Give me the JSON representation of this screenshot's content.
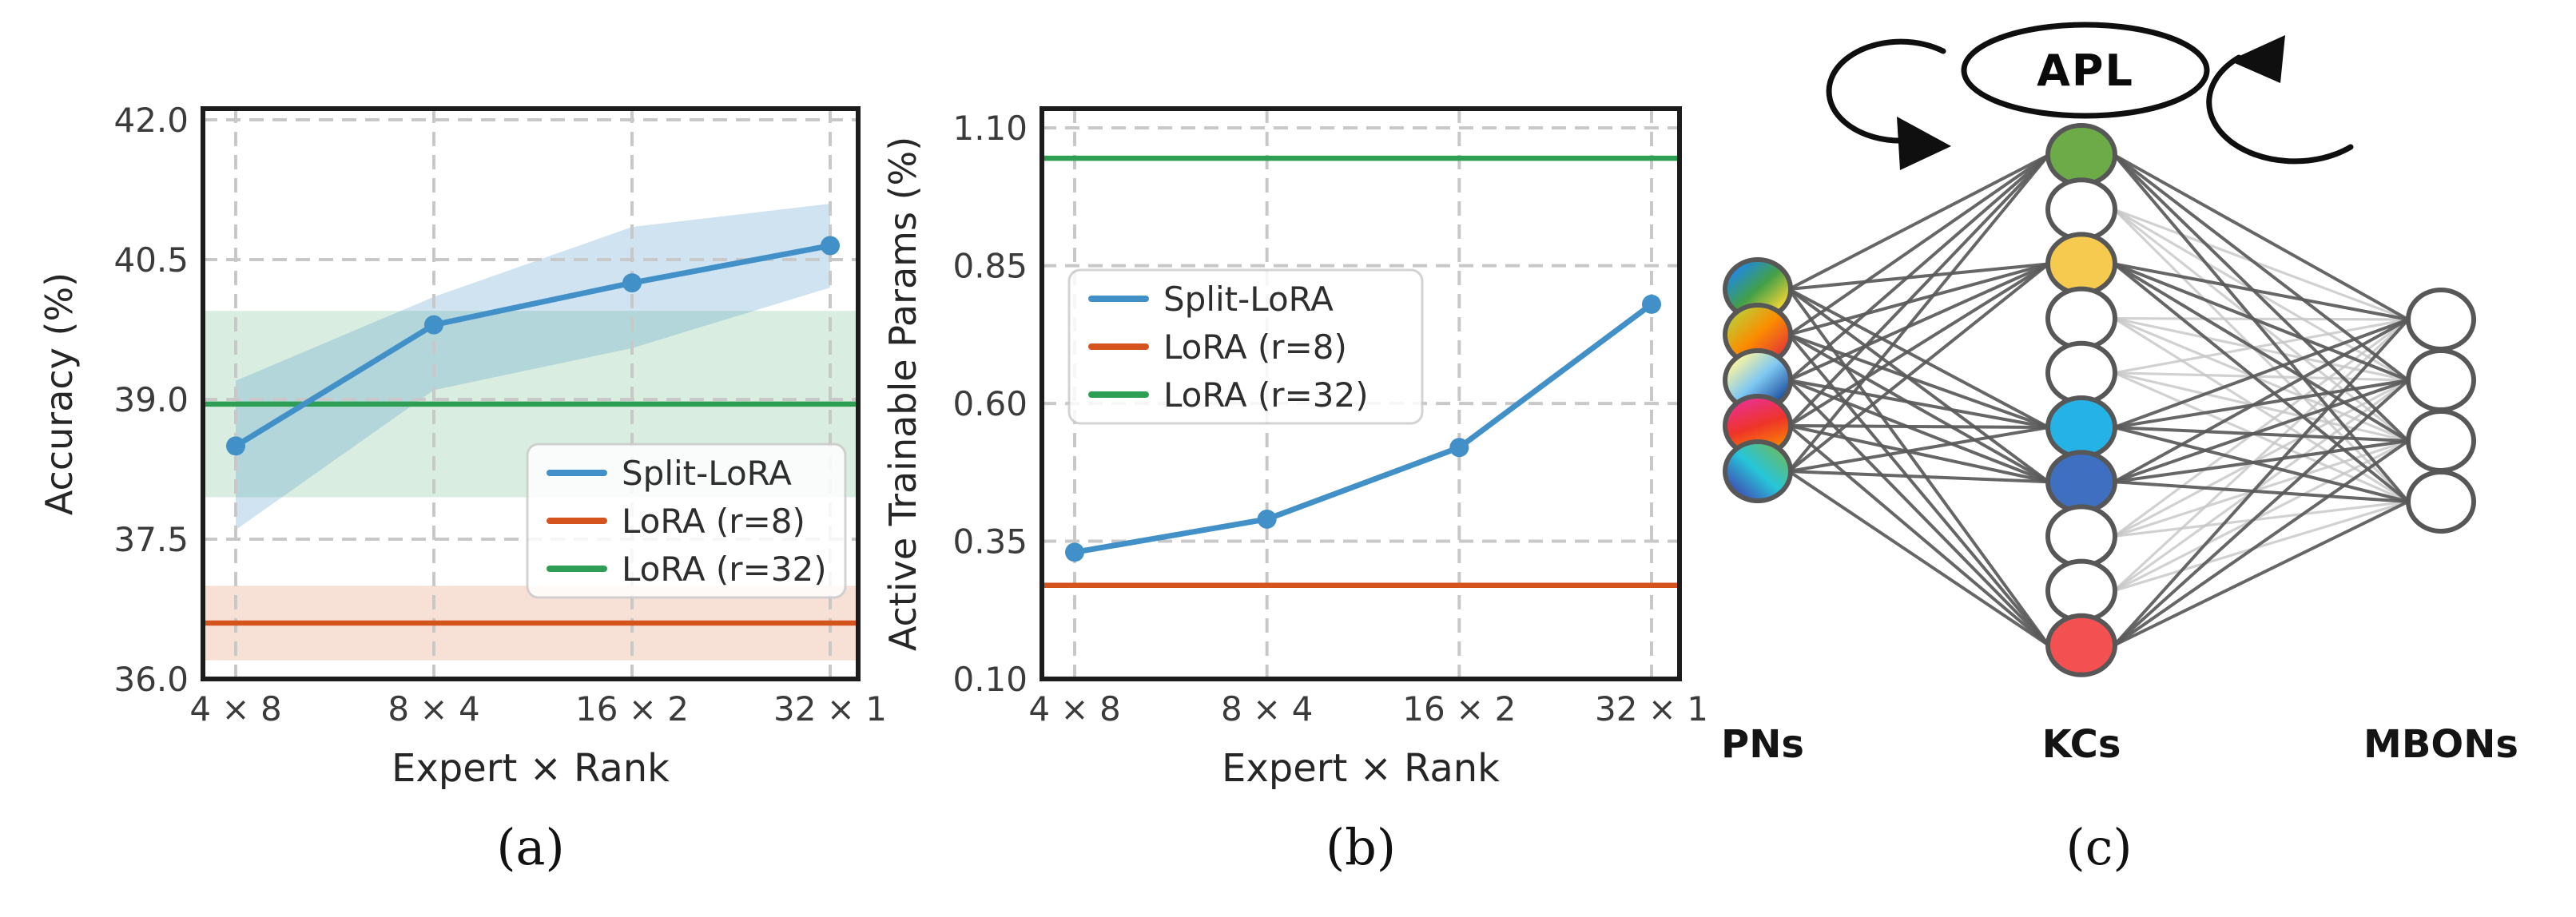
{
  "chart_data": [
    {
      "id": "a",
      "type": "line",
      "caption": "(a)",
      "xlabel": "Expert × Rank",
      "ylabel": "Accuracy (%)",
      "categories": [
        "4 × 8",
        "8 × 4",
        "16 × 2",
        "32 × 1"
      ],
      "ytick_labels": [
        "36.0",
        "37.5",
        "39.0",
        "40.5",
        "42.0"
      ],
      "yticks": [
        36.0,
        37.5,
        39.0,
        40.5,
        42.0
      ],
      "ylim": [
        36.0,
        42.12
      ],
      "grid": true,
      "legend_position": "center right",
      "series": [
        {
          "name": "Split-LoRA",
          "style": "line",
          "color": "#4290c8",
          "values": [
            38.5,
            39.8,
            40.25,
            40.65
          ],
          "band_low": [
            37.6,
            39.1,
            39.55,
            40.2
          ],
          "band_high": [
            39.2,
            40.1,
            40.85,
            41.1
          ]
        },
        {
          "name": "LoRA (r=8)",
          "style": "hline",
          "color": "#d5531c",
          "value": 36.6,
          "band": [
            36.2,
            37.0
          ]
        },
        {
          "name": "LoRA (r=32)",
          "style": "hline",
          "color": "#2e9e54",
          "value": 38.95,
          "band": [
            37.95,
            39.95
          ]
        }
      ]
    },
    {
      "id": "b",
      "type": "line",
      "caption": "(b)",
      "xlabel": "Expert × Rank",
      "ylabel": "Active Trainable Params (%)",
      "categories": [
        "4 × 8",
        "8 × 4",
        "16 × 2",
        "32 × 1"
      ],
      "ytick_labels": [
        "0.10",
        "0.35",
        "0.60",
        "0.85",
        "1.10"
      ],
      "yticks": [
        0.1,
        0.35,
        0.6,
        0.85,
        1.1
      ],
      "ylim": [
        0.1,
        1.135
      ],
      "grid": true,
      "legend_position": "upper left",
      "series": [
        {
          "name": "Split-LoRA",
          "style": "line",
          "color": "#4290c8",
          "values": [
            0.33,
            0.39,
            0.52,
            0.78
          ]
        },
        {
          "name": "LoRA (r=8)",
          "style": "hline",
          "color": "#d5531c",
          "value": 0.27
        },
        {
          "name": "LoRA (r=32)",
          "style": "hline",
          "color": "#2e9e54",
          "value": 1.045
        }
      ]
    }
  ],
  "diagram": {
    "caption": "(c)",
    "apl_label": "APL",
    "outline_color": "#575757",
    "edge_dark": "#5a5a5a",
    "edge_light": "#c6c6c6",
    "groups": [
      {
        "label": "PNs",
        "type": "gradient-nodes",
        "gradients": [
          {
            "angle": 45,
            "stops": [
              "#1e88e5",
              "#43a047",
              "#fdd835"
            ]
          },
          {
            "angle": 45,
            "stops": [
              "#c0ca33",
              "#fb8c00",
              "#e53935"
            ]
          },
          {
            "angle": 45,
            "stops": [
              "#fff59d",
              "#7ec8f2",
              "#1c4f9e"
            ]
          },
          {
            "angle": 250,
            "stops": [
              "#fb8c00",
              "#ef3429",
              "#e9318f"
            ]
          },
          {
            "angle": 315,
            "stops": [
              "#3f51b5",
              "#26c6da",
              "#66bb6a"
            ]
          }
        ]
      },
      {
        "label": "KCs",
        "type": "color-nodes",
        "colors": [
          "#6cab47",
          "#ffffff",
          "#f6c94f",
          "#ffffff",
          "#ffffff",
          "#25b2e6",
          "#3e6fc0",
          "#ffffff",
          "#ffffff",
          "#f25051"
        ]
      },
      {
        "label": "MBONs",
        "type": "color-nodes",
        "colors": [
          "#ffffff",
          "#ffffff",
          "#ffffff",
          "#ffffff"
        ]
      }
    ]
  },
  "style_colors": {
    "grid": "#c8c8c8",
    "spine": "#1c1c1c",
    "tick_text": "#3b3b3b"
  }
}
